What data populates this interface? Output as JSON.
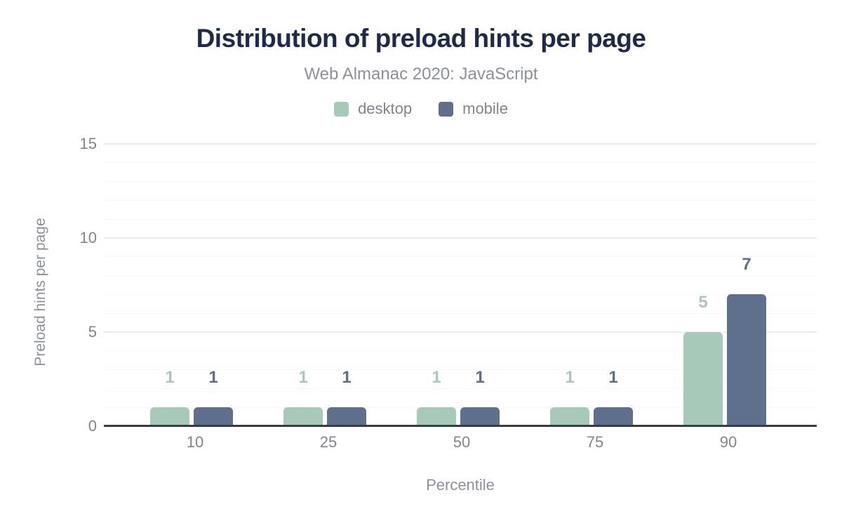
{
  "header": {
    "title": "Distribution of preload hints per page",
    "subtitle": "Web Almanac 2020: JavaScript"
  },
  "legend": {
    "items": [
      {
        "label": "desktop",
        "color": "#a7c9b8"
      },
      {
        "label": "mobile",
        "color": "#5e708c"
      }
    ]
  },
  "chart_data": {
    "type": "bar",
    "title": "Distribution of preload hints per page",
    "subtitle": "Web Almanac 2020: JavaScript",
    "categories": [
      "10",
      "25",
      "50",
      "75",
      "90"
    ],
    "series": [
      {
        "name": "desktop",
        "color": "#a7c9b8",
        "values": [
          1,
          1,
          1,
          1,
          5
        ]
      },
      {
        "name": "mobile",
        "color": "#5e708c",
        "values": [
          1,
          1,
          1,
          1,
          7
        ]
      }
    ],
    "value_labels": {
      "desktop": [
        "1",
        "1",
        "1",
        "1",
        "5"
      ],
      "mobile": [
        "1",
        "1",
        "1",
        "1",
        "7"
      ]
    },
    "xlabel": "Percentile",
    "ylabel": "Preload hints per page",
    "ylim": [
      0,
      15
    ],
    "yticks": [
      0,
      5,
      10,
      15
    ],
    "grid": "horizontal minor lines every 1 unit, major lines every 5 units",
    "legend_position": "top center"
  },
  "colors": {
    "background": "#ffffff",
    "title_text": "#1d2a4a",
    "muted_text": "#8b919b",
    "tick_text": "#80858e",
    "axis_line": "#383b41",
    "grid_minor": "#f5f5f7",
    "grid_major": "#ececef",
    "desktop_series": "#a7c9b8",
    "mobile_series": "#5e708c"
  }
}
